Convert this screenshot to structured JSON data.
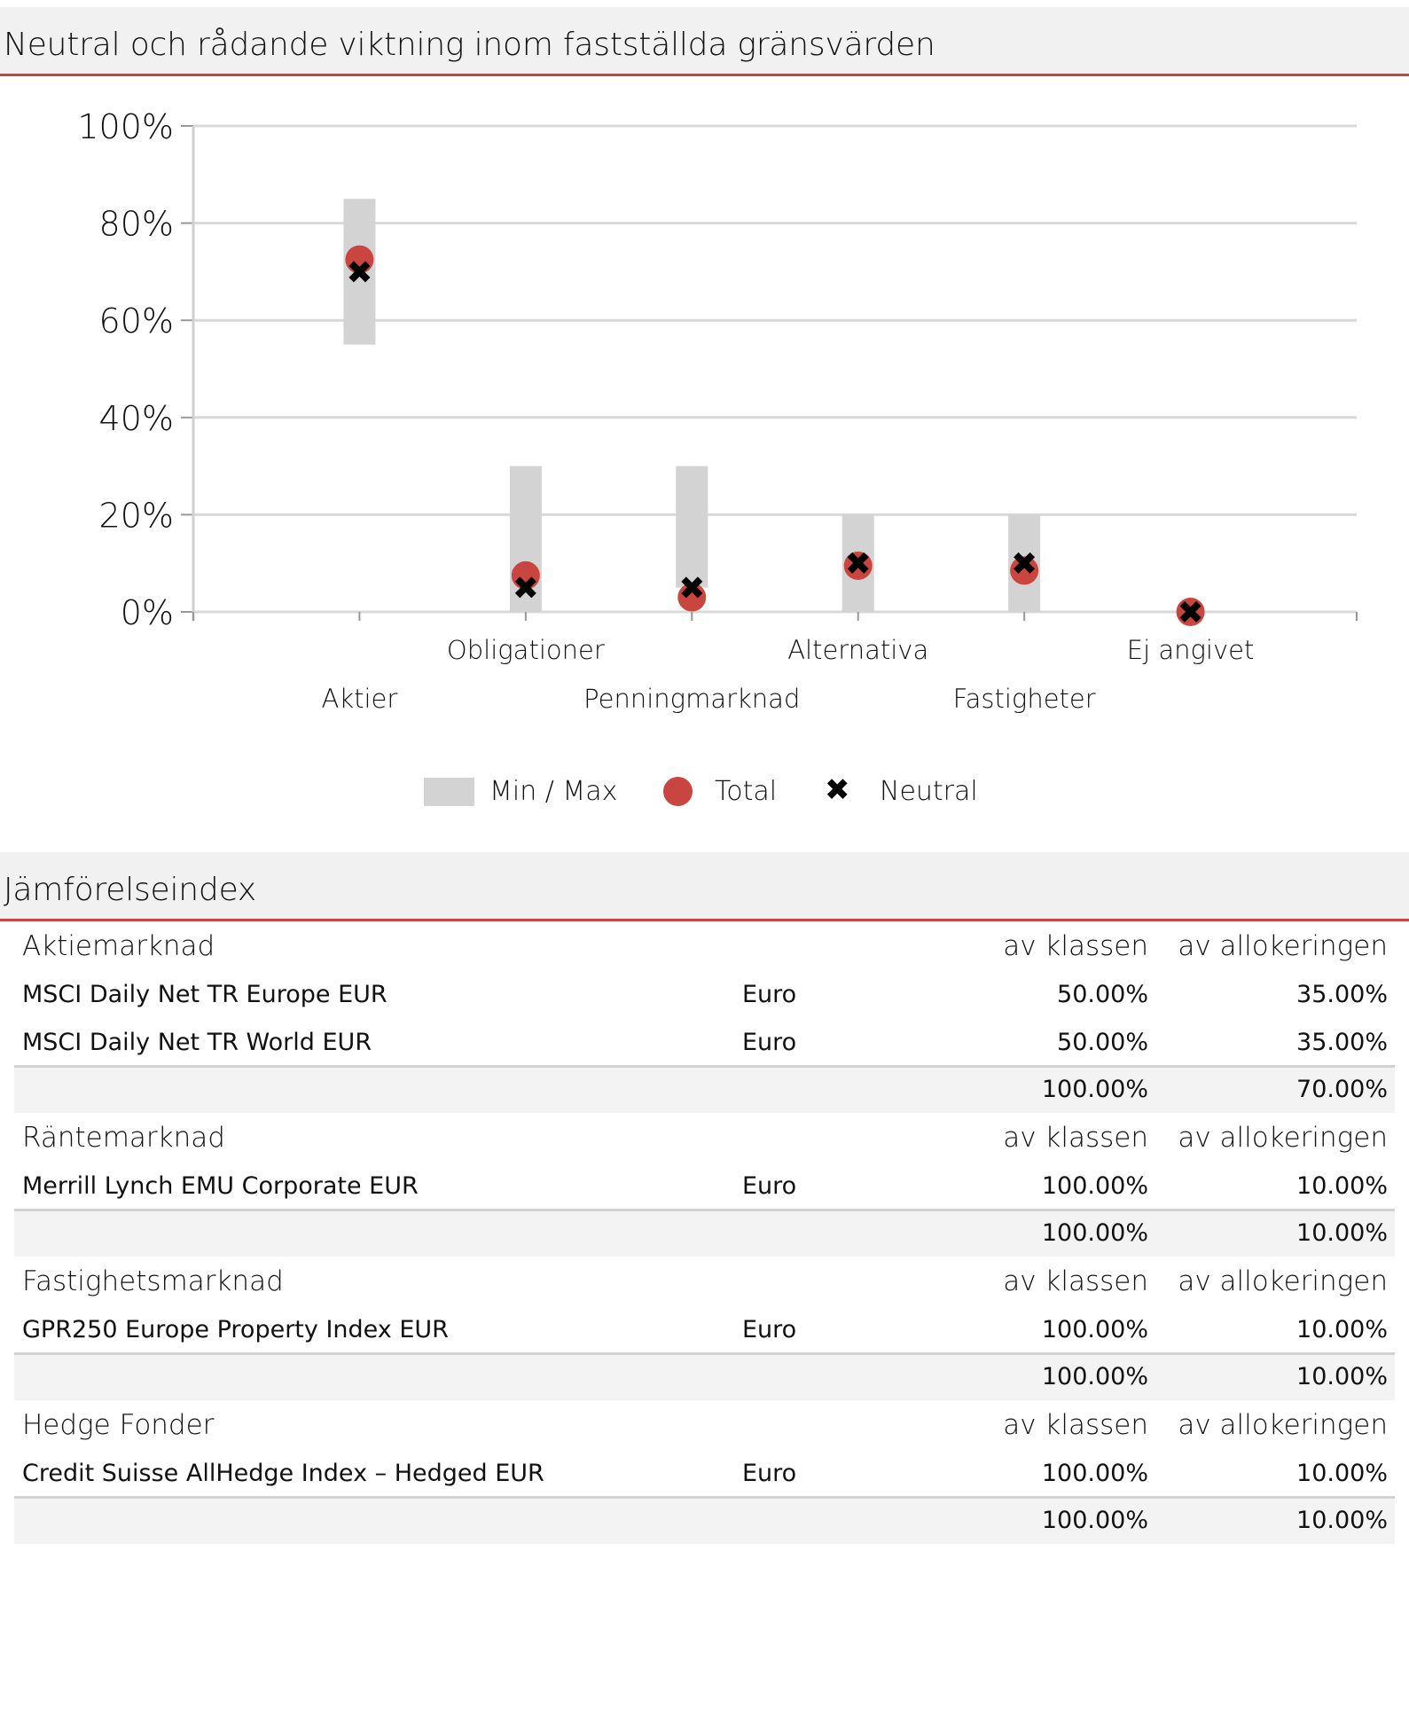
{
  "section1": {
    "title": "Neutral och rådande viktning inom fastställda gränsvärden"
  },
  "section2": {
    "title": "Jämförelseindex"
  },
  "chart_data": {
    "type": "range-dot",
    "ylim": [
      0,
      100
    ],
    "yticks": [
      "0%",
      "20%",
      "40%",
      "60%",
      "80%",
      "100%"
    ],
    "ytick_values": [
      0,
      20,
      40,
      60,
      80,
      100
    ],
    "grid": true,
    "categories": [
      "Aktier",
      "Obligationer",
      "Penningmarknad",
      "Alternativa",
      "Fastigheter",
      "Ej angivet"
    ],
    "series": [
      {
        "name": "Min / Max",
        "kind": "range",
        "min": [
          55,
          0,
          5,
          0,
          0,
          0
        ],
        "max": [
          85,
          30,
          30,
          20,
          20,
          0
        ],
        "color": "#d3d3d3"
      },
      {
        "name": "Total",
        "kind": "dot",
        "values": [
          72.5,
          7.5,
          3,
          9.5,
          8.5,
          0
        ],
        "color": "#c9453f"
      },
      {
        "name": "Neutral",
        "kind": "cross",
        "values": [
          70,
          5,
          5,
          10,
          10,
          0
        ],
        "color": "#000000"
      }
    ],
    "legend_position": "bottom"
  },
  "legend": {
    "minmax": "Min / Max",
    "total": "Total",
    "neutral": "Neutral"
  },
  "groups": [
    {
      "name": "Aktiemarknad",
      "col_k": "av klassen",
      "col_a": "av allokeringen",
      "rows": [
        {
          "name": "MSCI Daily Net TR Europe EUR",
          "currency": "Euro",
          "k": "50.00%",
          "a": "35.00%"
        },
        {
          "name": "MSCI Daily Net TR World EUR",
          "currency": "Euro",
          "k": "50.00%",
          "a": "35.00%"
        }
      ],
      "sum_k": "100.00%",
      "sum_a": "70.00%"
    },
    {
      "name": "Räntemarknad",
      "col_k": "av klassen",
      "col_a": "av allokeringen",
      "rows": [
        {
          "name": "Merrill Lynch EMU Corporate EUR",
          "currency": "Euro",
          "k": "100.00%",
          "a": "10.00%"
        }
      ],
      "sum_k": "100.00%",
      "sum_a": "10.00%"
    },
    {
      "name": "Fastighetsmarknad",
      "col_k": "av klassen",
      "col_a": "av allokeringen",
      "rows": [
        {
          "name": "GPR250 Europe Property Index EUR",
          "currency": "Euro",
          "k": "100.00%",
          "a": "10.00%"
        }
      ],
      "sum_k": "100.00%",
      "sum_a": "10.00%"
    },
    {
      "name": "Hedge Fonder",
      "col_k": "av klassen",
      "col_a": "av allokeringen",
      "rows": [
        {
          "name": "Credit Suisse AllHedge Index – Hedged EUR",
          "currency": "Euro",
          "k": "100.00%",
          "a": "10.00%"
        }
      ],
      "sum_k": "100.00%",
      "sum_a": "10.00%"
    }
  ]
}
